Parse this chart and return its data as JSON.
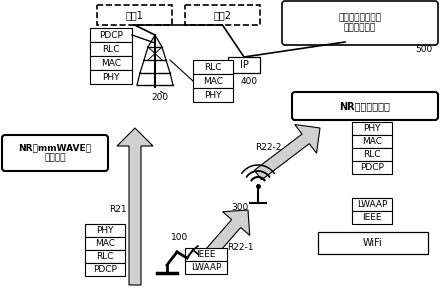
{
  "background_color": "#ffffff",
  "carrier1_label": "承载1",
  "carrier2_label": "承载2",
  "factory_label": "自动化工厂管理器\n（数据分析）",
  "factory_num": "500",
  "ip_label": "IP",
  "ip_num": "400",
  "nr_label": "NR（任意頻率）",
  "nr_mmwave_label": "NR（mmWAVE）\n波束扫描",
  "wifi_label": "WiFi",
  "node200_num": "200",
  "node300_num": "300",
  "node100_num": "100",
  "r21_label": "R21",
  "r22_2_label": "R22-2",
  "r22_1_label": "R22-1",
  "bs_layers": [
    "PDCP",
    "RLC",
    "MAC",
    "PHY"
  ],
  "relay_top_layers": [
    "RLC",
    "MAC",
    "PHY"
  ],
  "nr_right_layers": [
    "PHY",
    "MAC",
    "RLC",
    "PDCP"
  ],
  "lwaap_right_layers": [
    "LWAAP",
    "IEEE"
  ],
  "ue_left_layers": [
    "PHY",
    "MAC",
    "RLC",
    "PDCP"
  ],
  "ue_right_layers": [
    "IEEE",
    "LWAAP"
  ]
}
